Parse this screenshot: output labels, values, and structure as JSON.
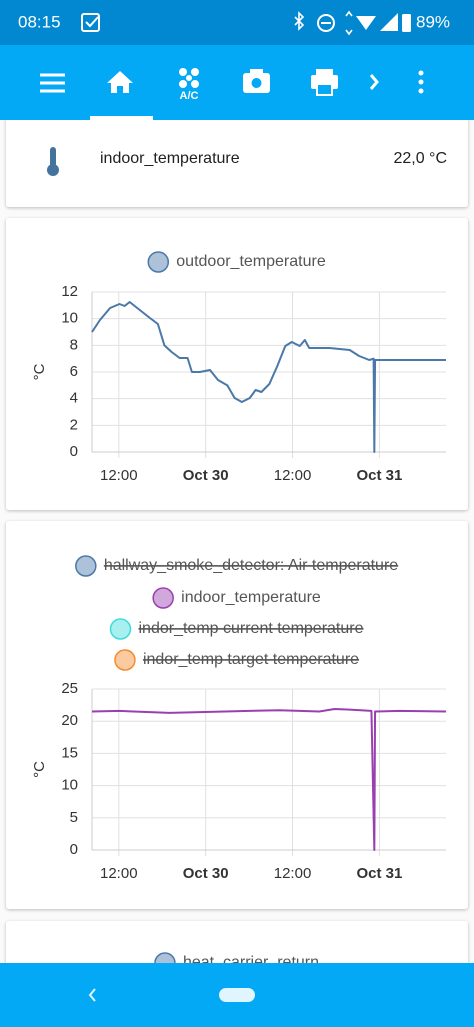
{
  "status_bar": {
    "time": "08:15",
    "battery": "89%"
  },
  "toolbar": {
    "ac_label": "A/C"
  },
  "entity_card": {
    "name": "indoor_temperature",
    "state": "22,0 °C"
  },
  "chart_data": [
    {
      "type": "line",
      "ylabel": "°C",
      "grid": true,
      "xlim": [
        8.3,
        57.2
      ],
      "xticks": [
        {
          "value": 12,
          "label": "12:00"
        },
        {
          "value": 24,
          "label": "Oct 30"
        },
        {
          "value": 36,
          "label": "12:00"
        },
        {
          "value": 48,
          "label": "Oct 31"
        }
      ],
      "ylim": [
        0,
        12
      ],
      "yticks": [
        0,
        2,
        4,
        6,
        8,
        10,
        12
      ],
      "x": [
        8.3,
        9.4,
        10.8,
        12.1,
        12.8,
        13.5,
        14.9,
        16.3,
        17.4,
        18.3,
        19.3,
        20.4,
        21.5,
        22.1,
        23.2,
        24.6,
        25.7,
        27.0,
        28.0,
        29.0,
        30.1,
        30.9,
        31.7,
        32.8,
        33.9,
        35.0,
        35.9,
        37.0,
        37.7,
        38.3,
        41.1,
        43.9,
        45.2,
        46.6,
        47.2,
        47.3,
        47.4,
        49.4,
        57.2
      ],
      "series": [
        {
          "name": "outdoor_temperature",
          "color": "#4a78a8",
          "hidden": false,
          "values": [
            9.0,
            9.9,
            10.8,
            11.1,
            10.95,
            11.25,
            10.65,
            10.05,
            9.6,
            8.0,
            7.5,
            7.05,
            7.05,
            6.0,
            6.0,
            6.15,
            5.4,
            5.0,
            4.05,
            3.75,
            4.05,
            4.65,
            4.5,
            5.1,
            6.45,
            7.95,
            8.25,
            7.95,
            8.4,
            7.8,
            7.8,
            7.65,
            7.2,
            6.9,
            7.0,
            0,
            6.9,
            6.9,
            6.9
          ]
        }
      ]
    },
    {
      "type": "line",
      "ylabel": "°C",
      "grid": true,
      "xlim": [
        8.3,
        57.2
      ],
      "xticks": [
        {
          "value": 12,
          "label": "12:00"
        },
        {
          "value": 24,
          "label": "Oct 30"
        },
        {
          "value": 36,
          "label": "12:00"
        },
        {
          "value": 48,
          "label": "Oct 31"
        }
      ],
      "ylim": [
        0,
        25
      ],
      "yticks": [
        0,
        5,
        10,
        15,
        20,
        25
      ],
      "x": [
        8.3,
        12.1,
        16.3,
        19.0,
        23.2,
        30.1,
        34.2,
        37.0,
        39.7,
        41.8,
        43.9,
        46.9,
        47.3,
        47.4,
        50.8,
        57.2
      ],
      "series": [
        {
          "name": "hallway_smoke_detector: Air temperature",
          "color": "#4a78a8",
          "hidden": true
        },
        {
          "name": "indoor_temperature",
          "color": "#9a3fb0",
          "hidden": false,
          "values": [
            21.5,
            21.6,
            21.4,
            21.3,
            21.4,
            21.6,
            21.7,
            21.6,
            21.5,
            21.9,
            21.8,
            21.6,
            0,
            21.5,
            21.6,
            21.5
          ]
        },
        {
          "name": "indor_temp current temperature",
          "color": "#3fdcdc",
          "hidden": true
        },
        {
          "name": "indor_temp target temperature",
          "color": "#f58a2e",
          "hidden": true
        }
      ]
    },
    {
      "type": "line",
      "series": [
        {
          "name": "heat_carrier_return",
          "color": "#4a78a8",
          "hidden": false
        }
      ]
    }
  ]
}
